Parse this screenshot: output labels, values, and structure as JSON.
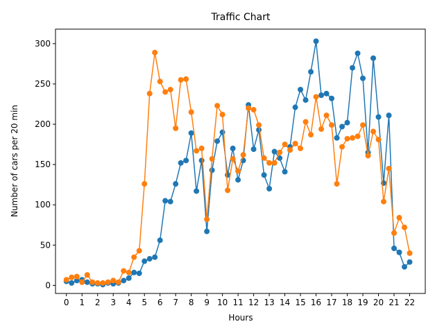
{
  "chart_data": {
    "type": "line",
    "title": "Traffic Chart",
    "xlabel": "Hours",
    "ylabel": "Number of cars per 20 min",
    "xlim": [
      -0.7,
      23
    ],
    "ylim": [
      -10,
      318
    ],
    "xticks": [
      0,
      1,
      2,
      3,
      4,
      5,
      6,
      7,
      8,
      9,
      10,
      11,
      12,
      13,
      14,
      15,
      16,
      17,
      18,
      19,
      20,
      21,
      22
    ],
    "xtick_labels": [
      "0",
      "1",
      "2",
      "3",
      "4",
      "5",
      "6",
      "7",
      "8",
      "9",
      "10",
      "11",
      "12",
      "13",
      "14",
      "15",
      "16",
      "17",
      "18",
      "19",
      "20",
      "21",
      "22"
    ],
    "yticks": [
      0,
      50,
      100,
      150,
      200,
      250,
      300
    ],
    "ytick_labels": [
      "0",
      "50",
      "100",
      "150",
      "200",
      "250",
      "300"
    ],
    "grid": false,
    "legend": "none",
    "x": [
      0,
      0.333,
      0.667,
      1,
      1.333,
      1.667,
      2,
      2.333,
      2.667,
      3,
      3.333,
      3.667,
      4,
      4.333,
      4.667,
      5,
      5.333,
      5.667,
      6,
      6.333,
      6.667,
      7,
      7.333,
      7.667,
      8,
      8.333,
      8.667,
      9,
      9.333,
      9.667,
      10,
      10.333,
      10.667,
      11,
      11.333,
      11.667,
      12,
      12.333,
      12.667,
      13,
      13.333,
      13.667,
      14,
      14.333,
      14.667,
      15,
      15.333,
      15.667,
      16,
      16.333,
      16.667,
      17,
      17.333,
      17.667,
      18,
      18.333,
      18.667,
      19,
      19.333,
      19.667,
      20,
      20.333,
      20.667,
      21,
      21.333,
      21.667,
      22
    ],
    "series": [
      {
        "color": "#1f77b4",
        "values": [
          5,
          3,
          6,
          7,
          4,
          2,
          2,
          1,
          3,
          2,
          3,
          6,
          9,
          16,
          15,
          30,
          33,
          35,
          56,
          105,
          104,
          126,
          152,
          155,
          189,
          117,
          155,
          67,
          143,
          179,
          190,
          137,
          170,
          131,
          155,
          224,
          169,
          193,
          137,
          120,
          166,
          158,
          141,
          172,
          221,
          243,
          230,
          265,
          303,
          236,
          238,
          232,
          183,
          197,
          202,
          270,
          288,
          257,
          165,
          282,
          209,
          127,
          211,
          46,
          41,
          23,
          29
        ]
      },
      {
        "color": "#ff7f0e",
        "values": [
          7,
          10,
          11,
          4,
          13,
          4,
          3,
          3,
          4,
          6,
          4,
          18,
          16,
          35,
          43,
          126,
          238,
          289,
          253,
          240,
          243,
          195,
          255,
          256,
          215,
          167,
          170,
          82,
          157,
          223,
          212,
          118,
          157,
          142,
          162,
          220,
          218,
          199,
          158,
          152,
          152,
          165,
          175,
          168,
          176,
          170,
          203,
          187,
          234,
          194,
          211,
          199,
          126,
          172,
          182,
          183,
          185,
          199,
          161,
          191,
          181,
          104,
          145,
          65,
          84,
          72,
          40
        ]
      }
    ]
  }
}
